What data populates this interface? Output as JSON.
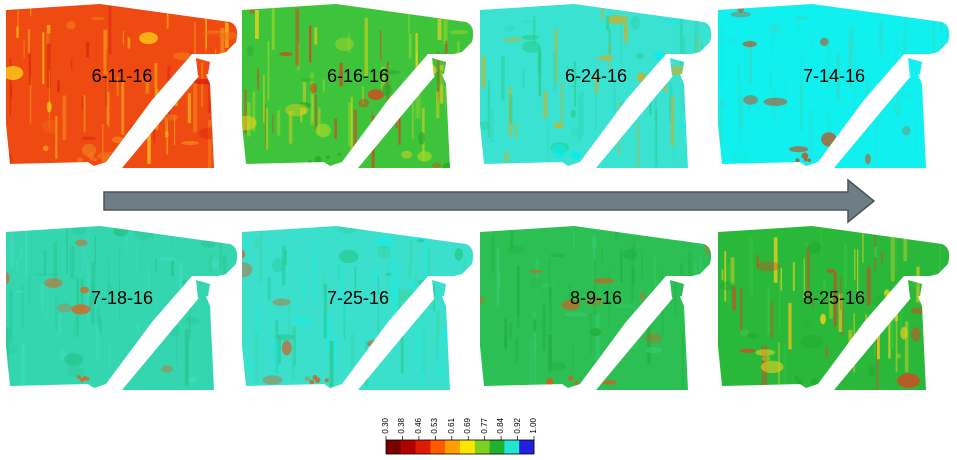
{
  "panels": [
    {
      "label": "6-11-16",
      "base": "#ee4a12",
      "patches": [
        "#f6a21a",
        "#ffd21a",
        "#d41e0c",
        "#f07818"
      ]
    },
    {
      "label": "6-16-16",
      "base": "#3ec43a",
      "patches": [
        "#9ed629",
        "#ffd21a",
        "#e8341a",
        "#2aa82e"
      ]
    },
    {
      "label": "6-24-16",
      "base": "#3ae2d2",
      "patches": [
        "#30d8b8",
        "#28cc86",
        "#d0b020",
        "#00f0f0"
      ]
    },
    {
      "label": "7-14-16",
      "base": "#0ff0ef",
      "patches": [
        "#22e6d6",
        "#12eee4",
        "#38d8c0",
        "#c05020"
      ]
    },
    {
      "label": "7-18-16",
      "base": "#34d6b0",
      "patches": [
        "#2cc894",
        "#40dcc0",
        "#26c286",
        "#e06020"
      ]
    },
    {
      "label": "7-25-16",
      "base": "#3ae0cc",
      "patches": [
        "#2ac88e",
        "#16eeea",
        "#40d4a8",
        "#d06020"
      ]
    },
    {
      "label": "8-9-16",
      "base": "#2cc054",
      "patches": [
        "#24b444",
        "#36ca70",
        "#22ac3c",
        "#d06020"
      ]
    },
    {
      "label": "8-25-16",
      "base": "#2ab83a",
      "patches": [
        "#3cc840",
        "#ffd21a",
        "#e04020",
        "#22aa34"
      ]
    }
  ],
  "legend": {
    "ticks": [
      "0.30",
      "0.38",
      "0.46",
      "0.53",
      "0.61",
      "0.69",
      "0.77",
      "0.84",
      "0.92",
      "1.00"
    ],
    "colors": [
      "#7a0000",
      "#b00000",
      "#e01a00",
      "#ff5a00",
      "#ffa000",
      "#ffe600",
      "#7cd020",
      "#22b030",
      "#22e6d0",
      "#2020e0"
    ]
  }
}
